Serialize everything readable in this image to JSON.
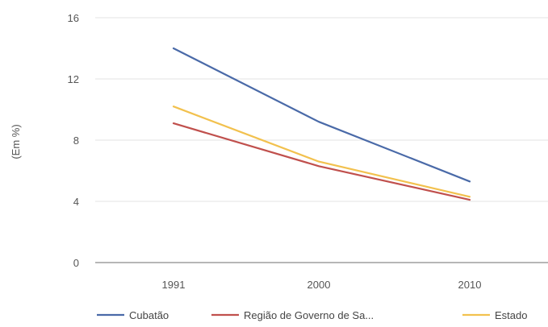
{
  "chart_data": {
    "type": "line",
    "title": "",
    "xlabel": "",
    "ylabel": "(Em %)",
    "categories": [
      "1991",
      "2000",
      "2010"
    ],
    "ylim": [
      0,
      16
    ],
    "yticks": [
      0,
      4,
      8,
      12,
      16
    ],
    "grid": true,
    "legend_position": "bottom",
    "series": [
      {
        "name": "Cubatão",
        "values": [
          14.0,
          9.2,
          5.3
        ],
        "color": "#4a6aa8"
      },
      {
        "name": "Região de Governo de Sa...",
        "values": [
          9.1,
          6.3,
          4.1
        ],
        "color": "#c0504d"
      },
      {
        "name": "Estado",
        "values": [
          10.2,
          6.6,
          4.3
        ],
        "color": "#f2c14e"
      }
    ]
  }
}
